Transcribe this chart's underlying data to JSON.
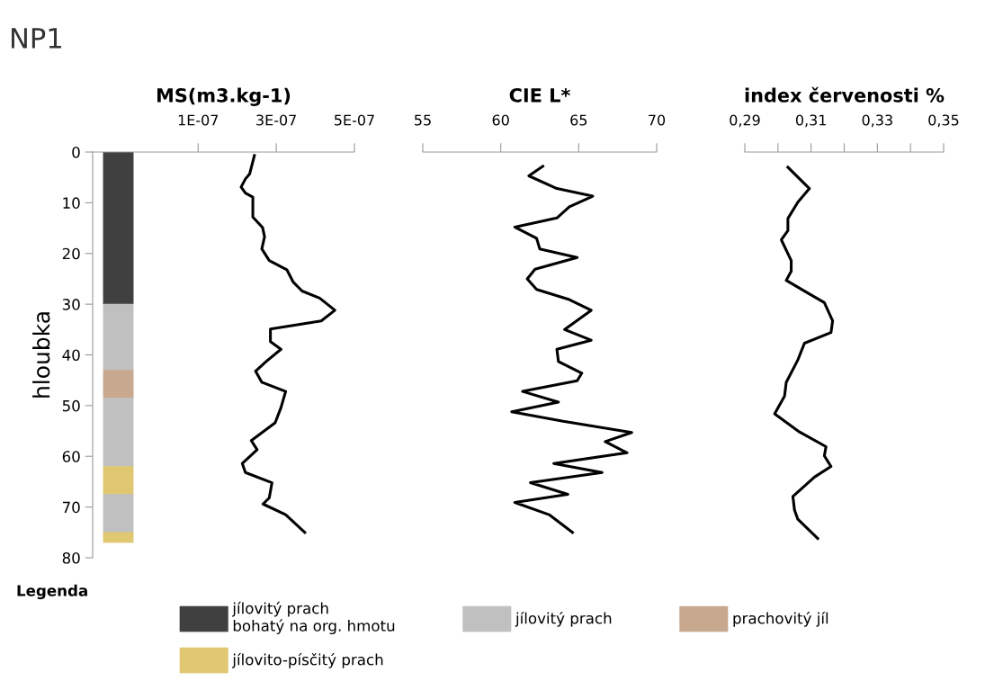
{
  "chart_data": [
    {
      "type": "line",
      "title": "MS(m3.kg-1)",
      "annotations": [
        "NP1"
      ],
      "ylabel": "hloubka",
      "legend_title": "Legenda",
      "legend": "bottom",
      "grid": false,
      "marker": "none",
      "line_style": "solid",
      "xlim": [
        -1.7e-07,
        5e-07
      ],
      "xticks": [
        {
          "value": 1e-07,
          "label": "1E-07"
        },
        {
          "value": 3e-07,
          "label": "3E-07"
        },
        {
          "value": 5e-07,
          "label": "5E-07"
        }
      ],
      "ylim": [
        80,
        0
      ],
      "yticks": [
        0,
        10,
        20,
        30,
        40,
        50,
        60,
        70,
        80
      ],
      "bands": [
        {
          "axis": "y",
          "from": 0,
          "to": 30,
          "color": "#404040",
          "label": "jílovitý prach\nbohatý na org. hmotu"
        },
        {
          "axis": "y",
          "from": 30,
          "to": 43,
          "color": "#c0c0c0",
          "label": "jílovitý prach"
        },
        {
          "axis": "y",
          "from": 43,
          "to": 48.5,
          "color": "#c8a98f",
          "label": "prachovitý jíl"
        },
        {
          "axis": "y",
          "from": 48.5,
          "to": 62,
          "color": "#c0c0c0"
        },
        {
          "axis": "y",
          "from": 62,
          "to": 67.5,
          "color": "#e0c873",
          "label": "jílovito-písčitý prach"
        },
        {
          "axis": "y",
          "from": 67.5,
          "to": 75,
          "color": "#c0c0c0"
        },
        {
          "axis": "y",
          "from": 75,
          "to": 77,
          "color": "#e0c873"
        }
      ],
      "series": [
        {
          "color": "#000000",
          "x": [
            2.44e-07,
            2.32e-07,
            2.21e-07,
            2.1e-07,
            2.21e-07,
            2.4e-07,
            2.4e-07,
            2.65e-07,
            2.7e-07,
            2.63e-07,
            2.82e-07,
            3.27e-07,
            3.43e-07,
            3.66e-07,
            4.11e-07,
            4.5e-07,
            4.15e-07,
            2.85e-07,
            2.85e-07,
            3.12e-07,
            2.74e-07,
            2.47e-07,
            2.63e-07,
            3.24e-07,
            3.12e-07,
            2.97e-07,
            2.36e-07,
            2.51e-07,
            2.13e-07,
            2.21e-07,
            2.89e-07,
            2.82e-07,
            2.66e-07,
            3.24e-07,
            3.73e-07
          ],
          "values": [
            0.7,
            4.3,
            5.3,
            6.9,
            8.1,
            8.9,
            12.8,
            14.9,
            16.7,
            19.1,
            21.4,
            23.2,
            25.6,
            27.4,
            28.8,
            31.2,
            33.3,
            34.9,
            37.4,
            38.9,
            41.3,
            43.2,
            45.4,
            47.2,
            50.4,
            53.4,
            56.9,
            58.7,
            61.4,
            63.2,
            65.2,
            68.2,
            69.4,
            71.5,
            75.0
          ]
        }
      ]
    },
    {
      "type": "line",
      "title": "CIE L*",
      "tick_labels": "x",
      "grid": false,
      "marker": "none",
      "line_style": "solid",
      "xlim": [
        55,
        70
      ],
      "xticks": [
        55,
        60,
        65,
        70
      ],
      "ylim": [
        80,
        0
      ],
      "series": [
        {
          "color": "#000000",
          "x": [
            62.7,
            61.8,
            63.6,
            65.9,
            64.4,
            63.6,
            60.9,
            62.3,
            62.5,
            64.9,
            62.2,
            61.7,
            62.3,
            64.4,
            65.8,
            64.1,
            65.8,
            63.6,
            63.7,
            65.2,
            64.9,
            61.4,
            63.7,
            60.7,
            64.0,
            68.4,
            66.7,
            68.1,
            63.4,
            66.5,
            61.9,
            64.3,
            60.9,
            63.1,
            64.6
          ],
          "values": [
            2.8,
            4.7,
            7.2,
            8.7,
            10.8,
            13.0,
            14.8,
            17.0,
            19.1,
            20.8,
            23.1,
            25.0,
            27.1,
            29.1,
            31.2,
            35.0,
            37.1,
            38.9,
            41.3,
            43.6,
            45.1,
            47.2,
            49.3,
            51.2,
            53.1,
            55.3,
            57.1,
            59.3,
            61.4,
            63.2,
            65.2,
            67.5,
            69.1,
            71.5,
            75.0
          ]
        }
      ]
    },
    {
      "type": "line",
      "title": "index červenosti %",
      "tick_labels": "x",
      "grid": false,
      "marker": "none",
      "line_style": "solid",
      "xlim": [
        0.29,
        0.35
      ],
      "xticks": [
        {
          "value": 0.29,
          "label": "0,29"
        },
        {
          "value": 0.3,
          "label": null
        },
        {
          "value": 0.31,
          "label": "0,31"
        },
        {
          "value": 0.32,
          "label": null
        },
        {
          "value": 0.33,
          "label": "0,33"
        },
        {
          "value": 0.34,
          "label": null
        },
        {
          "value": 0.35,
          "label": "0,35"
        }
      ],
      "ylim": [
        80,
        0
      ],
      "series": [
        {
          "color": "#000000",
          "x": [
            0.303,
            0.3095,
            0.306,
            0.303,
            0.303,
            0.301,
            0.304,
            0.304,
            0.3025,
            0.3085,
            0.314,
            0.3165,
            0.316,
            0.308,
            0.306,
            0.3025,
            0.302,
            0.299,
            0.3065,
            0.3145,
            0.314,
            0.316,
            0.311,
            0.3045,
            0.305,
            0.306,
            0.312
          ],
          "values": [
            3.0,
            7.2,
            9.9,
            13.1,
            15.5,
            17.3,
            21.4,
            23.5,
            25.3,
            27.6,
            29.7,
            33.3,
            35.6,
            37.7,
            41.0,
            45.4,
            48.1,
            51.6,
            55.2,
            58.1,
            59.9,
            62.0,
            64.1,
            67.9,
            70.6,
            72.4,
            76.2
          ]
        }
      ]
    }
  ]
}
